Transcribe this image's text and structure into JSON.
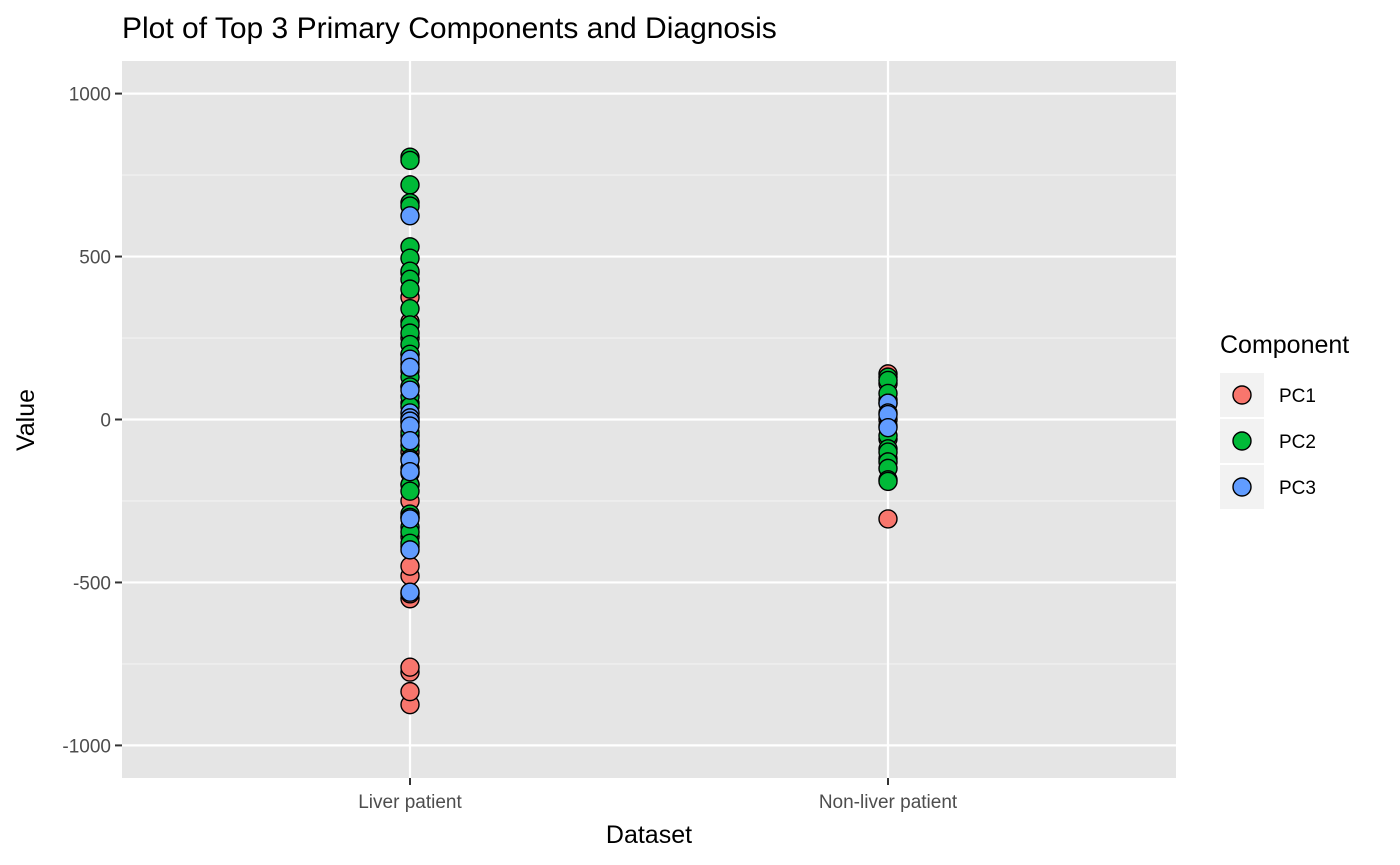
{
  "chart_data": {
    "type": "scatter",
    "title": "Plot of Top 3 Primary Components and Diagnosis",
    "xlabel": "Dataset",
    "ylabel": "Value",
    "categories": [
      "Liver patient",
      "Non-liver patient"
    ],
    "ylim": [
      -1100,
      1100
    ],
    "yticks": [
      -1000,
      -500,
      0,
      500,
      1000
    ],
    "ytick_labels": [
      "-1000",
      "-500",
      "0",
      "500",
      "1000"
    ],
    "grid": true,
    "legend": {
      "title": "Component",
      "position": "right"
    },
    "series": [
      {
        "name": "PC1",
        "color": "#F8766D",
        "points": [
          {
            "x": "Liver patient",
            "y": -875
          },
          {
            "x": "Liver patient",
            "y": -835
          },
          {
            "x": "Liver patient",
            "y": -775
          },
          {
            "x": "Liver patient",
            "y": -760
          },
          {
            "x": "Liver patient",
            "y": -550
          },
          {
            "x": "Liver patient",
            "y": -535
          },
          {
            "x": "Liver patient",
            "y": -480
          },
          {
            "x": "Liver patient",
            "y": -450
          },
          {
            "x": "Liver patient",
            "y": -390
          },
          {
            "x": "Liver patient",
            "y": -360
          },
          {
            "x": "Liver patient",
            "y": -300
          },
          {
            "x": "Liver patient",
            "y": -250
          },
          {
            "x": "Liver patient",
            "y": -200
          },
          {
            "x": "Liver patient",
            "y": -150
          },
          {
            "x": "Liver patient",
            "y": -100
          },
          {
            "x": "Liver patient",
            "y": -50
          },
          {
            "x": "Liver patient",
            "y": 0
          },
          {
            "x": "Liver patient",
            "y": 50
          },
          {
            "x": "Liver patient",
            "y": 100
          },
          {
            "x": "Liver patient",
            "y": 150
          },
          {
            "x": "Liver patient",
            "y": 200
          },
          {
            "x": "Liver patient",
            "y": 250
          },
          {
            "x": "Liver patient",
            "y": 300
          },
          {
            "x": "Liver patient",
            "y": 375
          },
          {
            "x": "Liver patient",
            "y": 450
          },
          {
            "x": "Non-liver patient",
            "y": -305
          },
          {
            "x": "Non-liver patient",
            "y": -120
          },
          {
            "x": "Non-liver patient",
            "y": -60
          },
          {
            "x": "Non-liver patient",
            "y": 0
          },
          {
            "x": "Non-liver patient",
            "y": 60
          },
          {
            "x": "Non-liver patient",
            "y": 110
          },
          {
            "x": "Non-liver patient",
            "y": 140
          }
        ]
      },
      {
        "name": "PC2",
        "color": "#00BA38",
        "points": [
          {
            "x": "Liver patient",
            "y": 805
          },
          {
            "x": "Liver patient",
            "y": 795
          },
          {
            "x": "Liver patient",
            "y": 720
          },
          {
            "x": "Liver patient",
            "y": 665
          },
          {
            "x": "Liver patient",
            "y": 655
          },
          {
            "x": "Liver patient",
            "y": 530
          },
          {
            "x": "Liver patient",
            "y": 495
          },
          {
            "x": "Liver patient",
            "y": 455
          },
          {
            "x": "Liver patient",
            "y": 430
          },
          {
            "x": "Liver patient",
            "y": 400
          },
          {
            "x": "Liver patient",
            "y": 340
          },
          {
            "x": "Liver patient",
            "y": 290
          },
          {
            "x": "Liver patient",
            "y": 265
          },
          {
            "x": "Liver patient",
            "y": 230
          },
          {
            "x": "Liver patient",
            "y": 200
          },
          {
            "x": "Liver patient",
            "y": 170
          },
          {
            "x": "Liver patient",
            "y": 130
          },
          {
            "x": "Liver patient",
            "y": 100
          },
          {
            "x": "Liver patient",
            "y": 70
          },
          {
            "x": "Liver patient",
            "y": 40
          },
          {
            "x": "Liver patient",
            "y": -10
          },
          {
            "x": "Liver patient",
            "y": -40
          },
          {
            "x": "Liver patient",
            "y": -80
          },
          {
            "x": "Liver patient",
            "y": -120
          },
          {
            "x": "Liver patient",
            "y": -165
          },
          {
            "x": "Liver patient",
            "y": -200
          },
          {
            "x": "Liver patient",
            "y": -220
          },
          {
            "x": "Liver patient",
            "y": -290
          },
          {
            "x": "Liver patient",
            "y": -300
          },
          {
            "x": "Liver patient",
            "y": -330
          },
          {
            "x": "Liver patient",
            "y": -345
          },
          {
            "x": "Liver patient",
            "y": -380
          },
          {
            "x": "Non-liver patient",
            "y": 130
          },
          {
            "x": "Non-liver patient",
            "y": 120
          },
          {
            "x": "Non-liver patient",
            "y": 80
          },
          {
            "x": "Non-liver patient",
            "y": 50
          },
          {
            "x": "Non-liver patient",
            "y": -20
          },
          {
            "x": "Non-liver patient",
            "y": -50
          },
          {
            "x": "Non-liver patient",
            "y": -90
          },
          {
            "x": "Non-liver patient",
            "y": -100
          },
          {
            "x": "Non-liver patient",
            "y": -130
          },
          {
            "x": "Non-liver patient",
            "y": -150
          },
          {
            "x": "Non-liver patient",
            "y": -185
          },
          {
            "x": "Non-liver patient",
            "y": -190
          }
        ]
      },
      {
        "name": "PC3",
        "color": "#619CFF",
        "points": [
          {
            "x": "Liver patient",
            "y": 625
          },
          {
            "x": "Liver patient",
            "y": 185
          },
          {
            "x": "Liver patient",
            "y": 160
          },
          {
            "x": "Liver patient",
            "y": 90
          },
          {
            "x": "Liver patient",
            "y": 20
          },
          {
            "x": "Liver patient",
            "y": 5
          },
          {
            "x": "Liver patient",
            "y": -5
          },
          {
            "x": "Liver patient",
            "y": -20
          },
          {
            "x": "Liver patient",
            "y": -65
          },
          {
            "x": "Liver patient",
            "y": -125
          },
          {
            "x": "Liver patient",
            "y": -160
          },
          {
            "x": "Liver patient",
            "y": -305
          },
          {
            "x": "Liver patient",
            "y": -400
          },
          {
            "x": "Liver patient",
            "y": -530
          },
          {
            "x": "Non-liver patient",
            "y": 50
          },
          {
            "x": "Non-liver patient",
            "y": 20
          },
          {
            "x": "Non-liver patient",
            "y": 15
          },
          {
            "x": "Non-liver patient",
            "y": -25
          }
        ]
      }
    ]
  }
}
